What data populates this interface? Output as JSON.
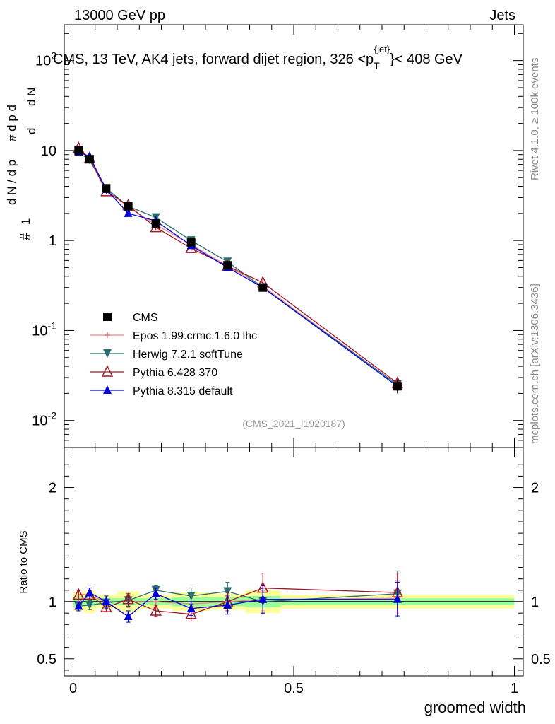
{
  "header": {
    "left": "13000 GeV pp",
    "right": "Jets",
    "title": "CMS, 13 TeV, AK4 jets, forward dijet region, 326 <p",
    "title_sup": "{jet}",
    "title_sub": "T",
    "title_end": "}< 408 GeV"
  },
  "side": {
    "rivet": "Rivet 4.1.0, ≥ 100k events",
    "mcplots": "mcplots.cern.ch [arXiv:1306.3436]"
  },
  "watermark": "(CMS_2021_I1920187)",
  "chart_data": [
    {
      "type": "line",
      "panel": "main",
      "yscale": "log",
      "ylabel": "1/dN/dpT d^2N/dpT dλ",
      "ylim": [
        0.005,
        250
      ],
      "xlim": [
        -0.02,
        1.02
      ],
      "y_tick_labels": [
        "10^-2",
        "10^-1",
        "1",
        "10",
        "10^2"
      ],
      "x": [
        0.0125,
        0.0375,
        0.075,
        0.125,
        0.1875,
        0.2675,
        0.35,
        0.43,
        0.735
      ],
      "series": [
        {
          "name": "CMS",
          "color": "#000000",
          "marker": "square",
          "values": [
            10.0,
            8.0,
            3.8,
            2.4,
            1.55,
            0.95,
            0.53,
            0.3,
            0.024
          ],
          "errors": [
            0.4,
            0.3,
            0.2,
            0.15,
            0.1,
            0.06,
            0.04,
            0.03,
            0.004
          ]
        },
        {
          "name": "Epos 1.99.crmc.1.6.0 lhc",
          "color": "#e88a8a",
          "marker": "cross",
          "values": [
            10.0,
            8.2,
            3.7,
            2.35,
            1.5,
            0.9,
            0.52,
            0.31,
            0.025
          ],
          "errors": [
            0.5,
            0.4,
            0.2,
            0.15,
            0.1,
            0.06,
            0.04,
            0.03,
            0.004
          ]
        },
        {
          "name": "Herwig 7.2.1 softTune",
          "color": "#2a6b6b",
          "marker": "triangle-down",
          "values": [
            9.6,
            7.8,
            3.8,
            2.4,
            1.8,
            1.0,
            0.58,
            0.3,
            0.025
          ],
          "errors": [
            0.5,
            0.4,
            0.2,
            0.15,
            0.1,
            0.06,
            0.04,
            0.03,
            0.004
          ]
        },
        {
          "name": "Pythia 6.428 370",
          "color": "#a01828",
          "marker": "triangle-open",
          "values": [
            10.6,
            8.2,
            3.5,
            2.45,
            1.4,
            0.82,
            0.52,
            0.34,
            0.026
          ],
          "errors": [
            0.5,
            0.4,
            0.2,
            0.15,
            0.1,
            0.06,
            0.04,
            0.04,
            0.004
          ]
        },
        {
          "name": "Pythia 8.315 default",
          "color": "#0000dd",
          "marker": "triangle-up",
          "values": [
            9.6,
            8.6,
            3.7,
            2.0,
            1.65,
            0.88,
            0.5,
            0.3,
            0.024
          ],
          "errors": [
            0.5,
            0.4,
            0.2,
            0.15,
            0.1,
            0.06,
            0.04,
            0.03,
            0.004
          ]
        }
      ]
    },
    {
      "type": "line",
      "panel": "ratio",
      "ylabel": "Ratio to CMS",
      "xlabel": "groomed width",
      "ylim": [
        0.35,
        2.35
      ],
      "xlim": [
        -0.02,
        1.02
      ],
      "x_tick_labels": [
        "0",
        "0.5",
        "1"
      ],
      "y_tick_labels": [
        "0.5",
        "1",
        "2"
      ],
      "bands": {
        "bins": [
          [
            0,
            0.025
          ],
          [
            0.025,
            0.05
          ],
          [
            0.05,
            0.1
          ],
          [
            0.1,
            0.15
          ],
          [
            0.15,
            0.225
          ],
          [
            0.225,
            0.31
          ],
          [
            0.31,
            0.39
          ],
          [
            0.39,
            0.47
          ],
          [
            0.47,
            1.0
          ]
        ],
        "inner": [
          0.04,
          0.04,
          0.03,
          0.03,
          0.03,
          0.04,
          0.04,
          0.05,
          0.03
        ],
        "outer": [
          0.08,
          0.1,
          0.06,
          0.09,
          0.06,
          0.08,
          0.07,
          0.1,
          0.06
        ]
      },
      "x": [
        0.0125,
        0.0375,
        0.075,
        0.125,
        0.1875,
        0.2675,
        0.35,
        0.43,
        0.735
      ],
      "series": [
        {
          "name": "Epos 1.99.crmc.1.6.0 lhc",
          "color": "#e88a8a",
          "values": [
            1.0,
            1.05,
            1.0,
            1.0,
            1.0,
            0.98,
            1.0,
            1.02,
            1.03
          ],
          "errors": [
            0.05,
            0.05,
            0.05,
            0.05,
            0.05,
            0.05,
            0.06,
            0.1,
            0.15
          ]
        },
        {
          "name": "Herwig 7.2.1 softTune",
          "color": "#2a6b6b",
          "values": [
            0.96,
            0.97,
            0.99,
            1.01,
            1.1,
            1.05,
            1.09,
            1.0,
            1.07
          ],
          "errors": [
            0.04,
            0.04,
            0.05,
            0.05,
            0.04,
            0.07,
            0.08,
            0.1,
            0.2
          ]
        },
        {
          "name": "Pythia 6.428 370",
          "color": "#a01828",
          "values": [
            1.06,
            1.06,
            0.95,
            1.02,
            0.92,
            0.89,
            1.0,
            1.12,
            1.08
          ],
          "errors": [
            0.04,
            0.04,
            0.04,
            0.05,
            0.05,
            0.06,
            0.08,
            0.13,
            0.17
          ]
        },
        {
          "name": "Pythia 8.315 default",
          "color": "#0000dd",
          "values": [
            0.96,
            1.08,
            1.0,
            0.87,
            1.07,
            0.94,
            0.97,
            1.02,
            1.02
          ],
          "errors": [
            0.04,
            0.04,
            0.05,
            0.05,
            0.05,
            0.06,
            0.08,
            0.12,
            0.15
          ]
        }
      ]
    }
  ]
}
